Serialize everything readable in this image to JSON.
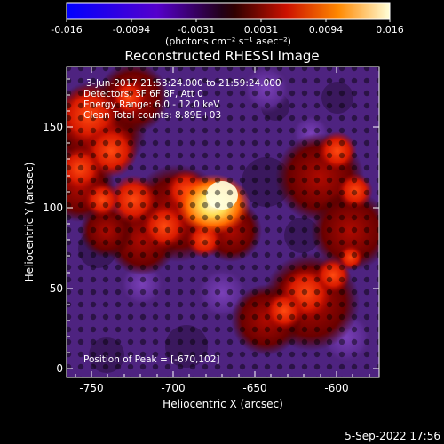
{
  "colorbar": {
    "ticks": [
      "-0.016",
      "-0.0094",
      "-0.0031",
      "0.0031",
      "0.0094",
      "0.016"
    ],
    "unit_label": "(photons cm⁻² s⁻¹ asec⁻²)"
  },
  "plot": {
    "title": "Reconstructed RHESSI Image",
    "info_lines": [
      "3-Jun-2017 21:53:24.000 to 21:59:24.000",
      "Detectors: 3F 6F 8F, Att 0",
      "Energy Range: 6.0 - 12.0 keV",
      "Clean     Total counts: 8.89E+03"
    ],
    "peak_label": "Position of Peak = [-670,102]",
    "xlabel": "Heliocentric X (arcsec)",
    "ylabel": "Heliocentric Y (arcsec)",
    "x_ticks": [
      "-750",
      "-700",
      "-650",
      "-600"
    ],
    "y_ticks": [
      "0",
      "50",
      "100",
      "150"
    ],
    "xlim": [
      -765,
      -573
    ],
    "ylim": [
      -5,
      180
    ]
  },
  "footer": {
    "date": "5-Sep-2022 17:56"
  }
}
